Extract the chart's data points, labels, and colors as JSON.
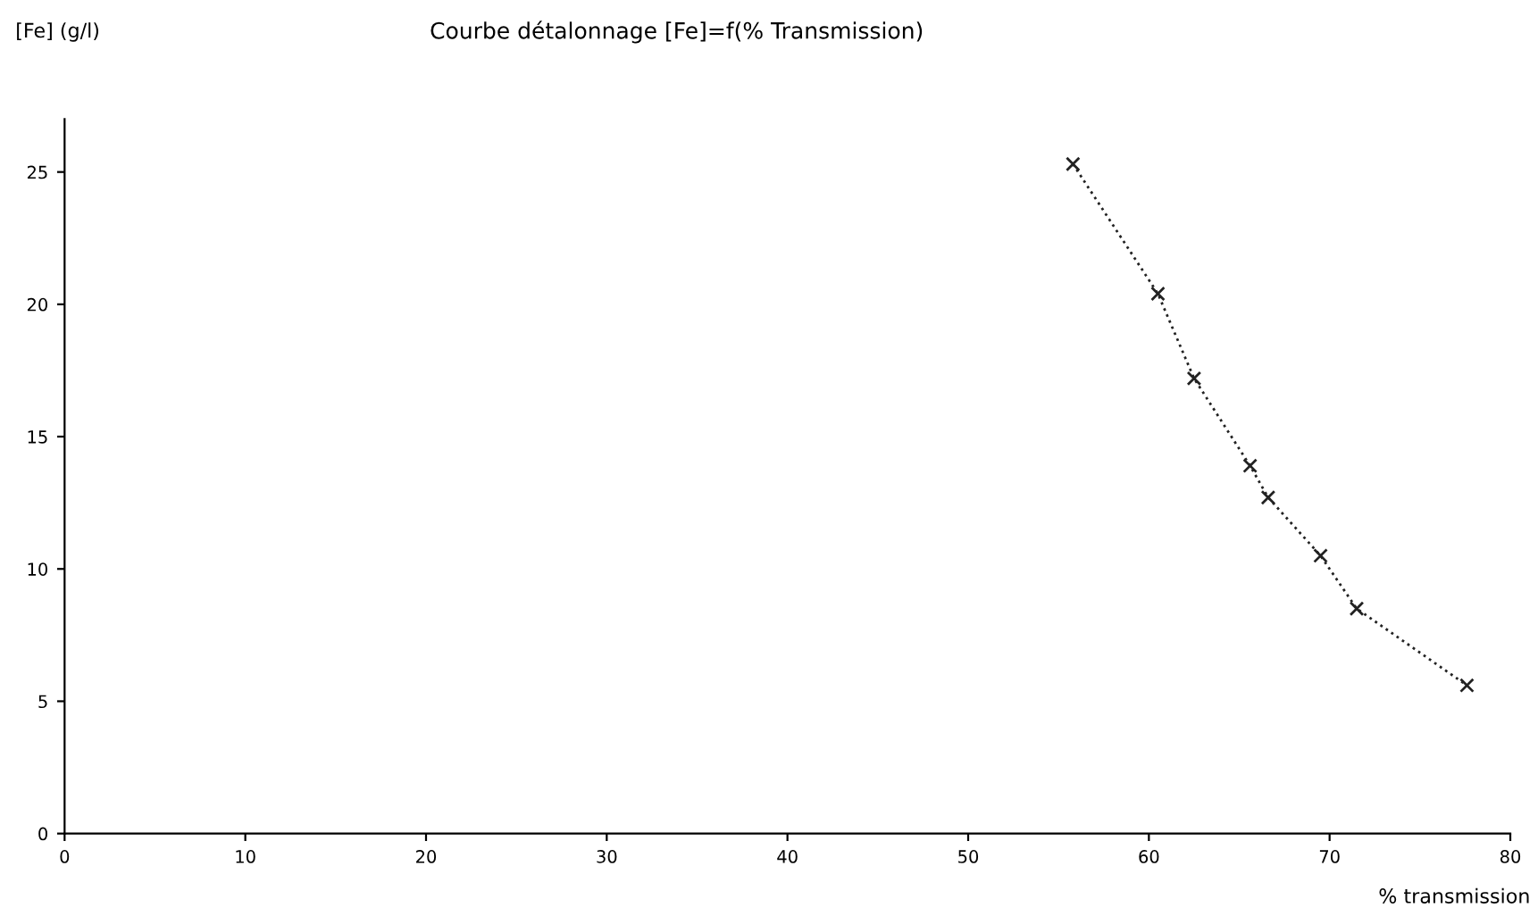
{
  "chart_data": {
    "type": "line",
    "title": "Courbe détalonnage [Fe]=f(% Transmission)",
    "xlabel": "% transmission",
    "ylabel": "[Fe] (g/l)",
    "x": [
      55.8,
      60.5,
      62.5,
      65.6,
      66.6,
      69.5,
      71.5,
      77.6
    ],
    "series": [
      {
        "color": "#222222",
        "values": [
          25.3,
          20.4,
          17.2,
          13.9,
          12.7,
          10.5,
          8.5,
          5.6
        ]
      }
    ],
    "marker": "cross",
    "line_style": "dotted",
    "grid": false,
    "xlim": [
      0,
      80
    ],
    "xticks": [
      0,
      10,
      20,
      30,
      40,
      50,
      60,
      70,
      80
    ],
    "ylim": [
      0,
      27
    ],
    "yticks": [
      0,
      5,
      10,
      15,
      20,
      25
    ]
  }
}
